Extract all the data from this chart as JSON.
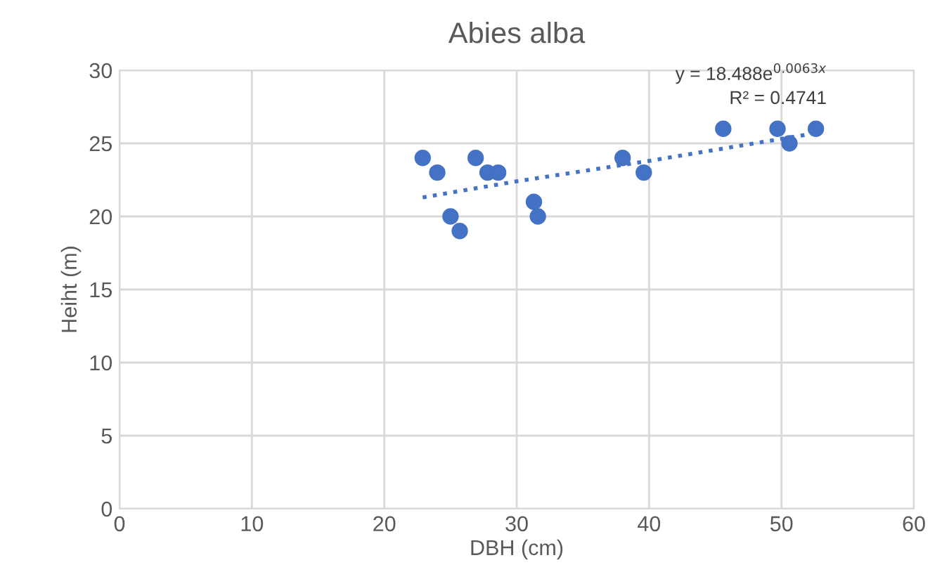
{
  "chart_data": {
    "type": "scatter",
    "title": "Abies alba",
    "xlabel": "DBH (cm)",
    "ylabel": "Heiht (m)",
    "xlim": [
      0,
      60
    ],
    "xticks": [
      0,
      10,
      20,
      30,
      40,
      50,
      60
    ],
    "ylim": [
      0,
      30
    ],
    "yticks": [
      0,
      5,
      10,
      15,
      20,
      25,
      30
    ],
    "grid": true,
    "marker": "circle",
    "series": [
      {
        "color": "#4472c4",
        "x": [
          22.9,
          24.0,
          25.0,
          25.7,
          26.9,
          27.8,
          28.6,
          31.3,
          31.6,
          38.0,
          39.6,
          45.6,
          49.7,
          50.6,
          52.6
        ],
        "values": [
          24,
          23,
          20,
          19,
          24,
          23,
          23,
          21,
          20,
          24,
          23,
          26,
          26,
          25,
          26
        ]
      },
      {
        "type": "line",
        "color": "#4472c4",
        "line_style": "dotted",
        "marker": "none",
        "x": [
          22.9,
          30,
          40,
          52.6
        ],
        "values": [
          21.3,
          22.4,
          23.8,
          25.7
        ]
      }
    ],
    "annotations": [
      "y = 18.488e$^{0.0063x}$",
      "R² = 0.4741"
    ]
  }
}
